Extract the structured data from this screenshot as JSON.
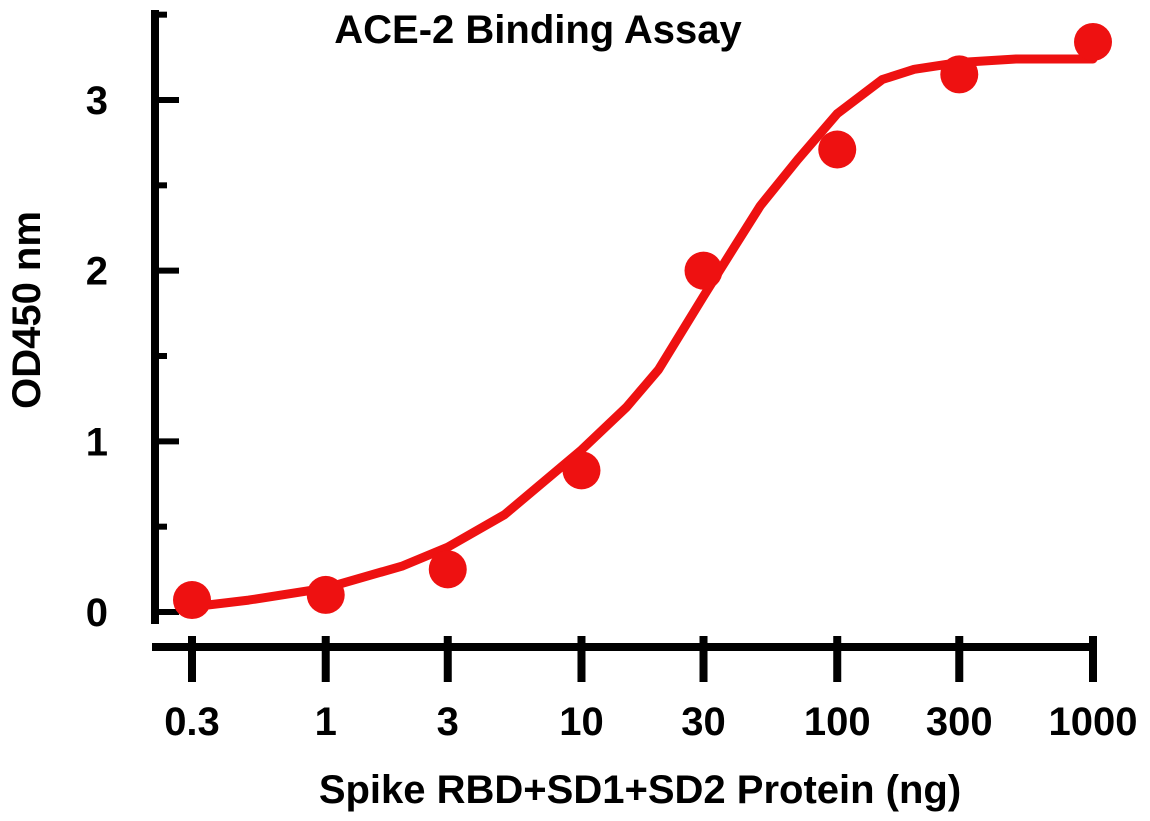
{
  "chart_data": {
    "type": "scatter",
    "title": "ACE-2 Binding Assay",
    "xlabel": "Spike RBD+SD1+SD2 Protein (ng)",
    "ylabel": "OD450 nm",
    "x_scale": "log",
    "xlim": [
      0.3,
      1000
    ],
    "ylim": [
      0,
      3
    ],
    "x_ticks": [
      0.3,
      1,
      3,
      10,
      30,
      100,
      300,
      1000
    ],
    "x_tick_labels": [
      "0.3",
      "1",
      "3",
      "10",
      "30",
      "100",
      "300",
      "1000"
    ],
    "y_ticks": [
      0,
      1,
      2,
      3
    ],
    "y_tick_labels": [
      "0",
      "1",
      "2",
      "3"
    ],
    "grid": false,
    "series": [
      {
        "color": "#ee1111",
        "x": [
          0.3,
          1,
          3,
          10,
          30,
          100,
          300,
          1000
        ],
        "y": [
          0.07,
          0.1,
          0.25,
          0.83,
          2.0,
          2.71,
          3.15,
          3.34
        ]
      }
    ],
    "fit_curve": {
      "type": "sigmoidal",
      "color": "#ee1111",
      "x": [
        0.3,
        0.5,
        1,
        2,
        3,
        5,
        10,
        15,
        20,
        30,
        40,
        50,
        70,
        100,
        150,
        200,
        300,
        500,
        1000
      ],
      "y": [
        0.03,
        0.07,
        0.14,
        0.27,
        0.38,
        0.57,
        0.95,
        1.2,
        1.42,
        1.85,
        2.15,
        2.38,
        2.65,
        2.92,
        3.12,
        3.18,
        3.22,
        3.24,
        3.24
      ]
    }
  }
}
